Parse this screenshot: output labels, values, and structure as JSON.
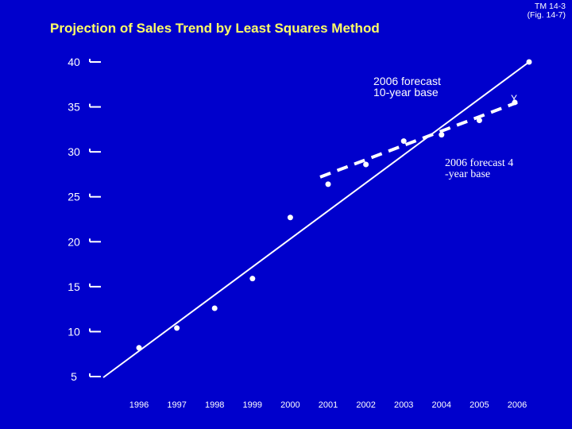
{
  "ref": {
    "line1": "TM 14-3",
    "line2": "(Fig. 14-7)"
  },
  "title": "Projection of Sales Trend by Least Squares Method",
  "colors": {
    "background": "#0000CC",
    "title": "#FFFF66",
    "foreground": "#FFFFFF"
  },
  "annotations": {
    "forecast_10yr_line1": "2006 forecast",
    "forecast_10yr_line2": "10-year base",
    "forecast_4yr_line1": "2006 forecast 4",
    "forecast_4yr_line2": "-year base",
    "y_label": "Y"
  },
  "chart_data": {
    "type": "scatter",
    "title": "Projection of Sales Trend by Least Squares Method",
    "xlabel": "",
    "ylabel": "",
    "x_ticks": [
      "1996",
      "1997",
      "1998",
      "1999",
      "2000",
      "2001",
      "2002",
      "2003",
      "2004",
      "2005",
      "2006"
    ],
    "y_ticks": [
      "5",
      "10",
      "15",
      "20",
      "25",
      "30",
      "35",
      "40"
    ],
    "ylim": [
      5,
      40
    ],
    "grid": false,
    "series": [
      {
        "name": "",
        "kind": "points",
        "points": [
          {
            "x": 1996,
            "y": 8.2
          },
          {
            "x": 1997,
            "y": 10.4
          },
          {
            "x": 1998,
            "y": 12.6
          },
          {
            "x": 1999,
            "y": 15.9
          },
          {
            "x": 2000,
            "y": 22.7
          },
          {
            "x": 2001,
            "y": 26.4
          },
          {
            "x": 2002,
            "y": 28.6
          },
          {
            "x": 2003,
            "y": 31.2
          },
          {
            "x": 2004,
            "y": 31.9
          },
          {
            "x": 2005,
            "y": 33.5
          }
        ]
      },
      {
        "name": "",
        "kind": "solid-line",
        "points": [
          {
            "x": 1995,
            "y": 4.9
          },
          {
            "x": 2006,
            "y": 40.0
          }
        ]
      },
      {
        "name": "",
        "kind": "dashed-line",
        "points": [
          {
            "x": 2001,
            "y": 27.2
          },
          {
            "x": 2006,
            "y": 35.5
          }
        ]
      }
    ],
    "forecasts_2006": [
      {
        "label": "2006 forecast 10-year base",
        "y": 40.0
      },
      {
        "label": "2006 forecast 4-year base",
        "y": 35.5
      }
    ]
  }
}
